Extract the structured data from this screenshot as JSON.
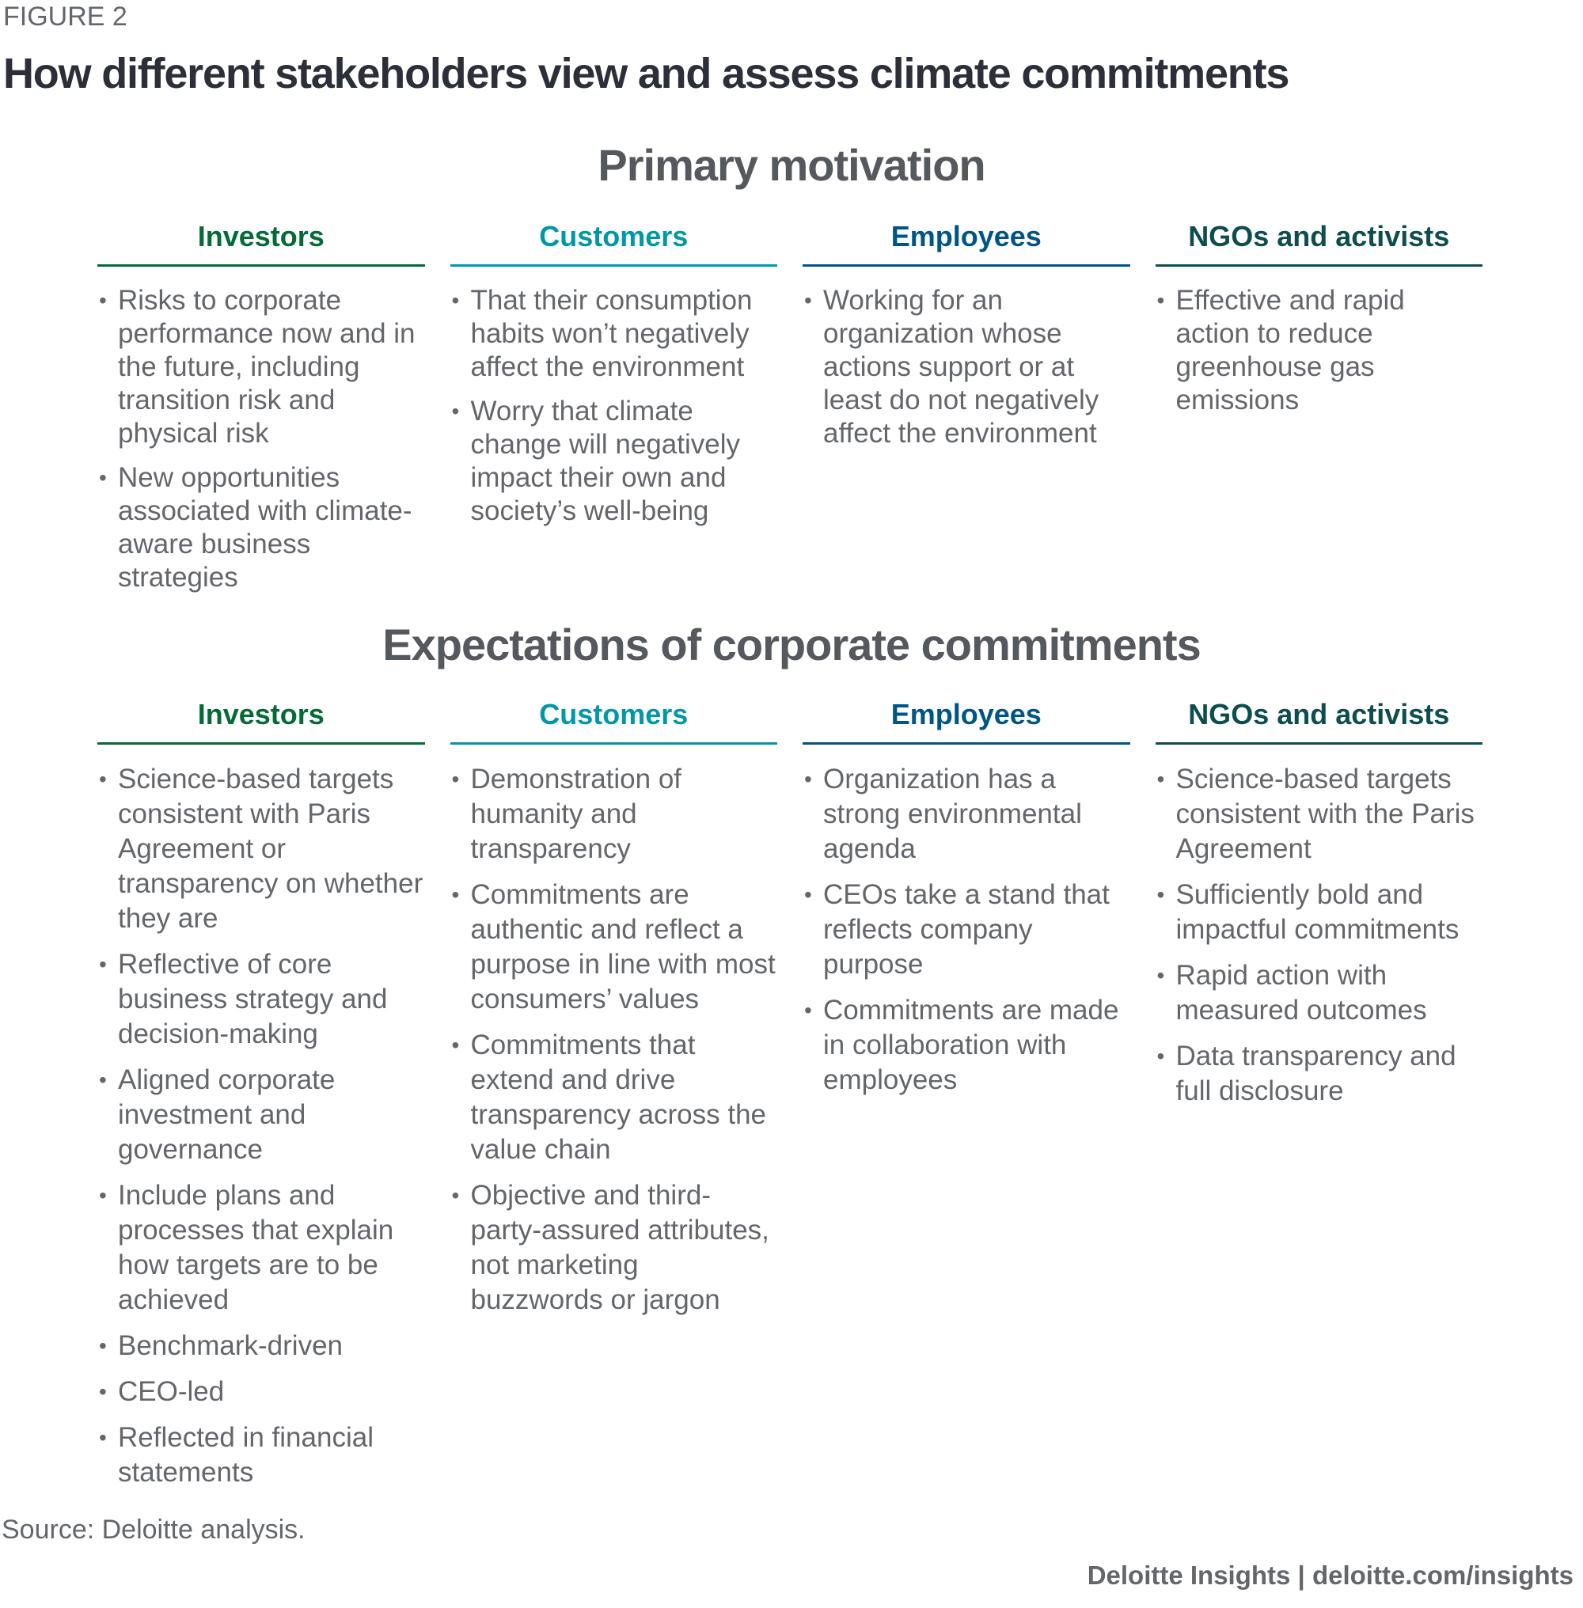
{
  "figure_label": "FIGURE 2",
  "title": "How different stakeholders view and assess climate commitments",
  "colors": {
    "investors": "#046A38",
    "customers": "#0097A9",
    "employees": "#005587",
    "ngos": "#0D4D4D",
    "text": "#63666A",
    "title": "#2c2f3a"
  },
  "sections": [
    {
      "heading": "Primary motivation",
      "columns": [
        {
          "label": "Investors",
          "items": [
            "Risks to corporate performance now and in the future, including transition risk and physical risk",
            "New opportunities associated with climate-aware business strategies"
          ]
        },
        {
          "label": "Customers",
          "items": [
            "That their consumption habits won’t negatively affect the environment",
            "Worry that climate change will negatively impact their own and society’s well-being"
          ]
        },
        {
          "label": "Employees",
          "items": [
            "Working for an organization whose actions support or at least do not negatively affect the environment"
          ]
        },
        {
          "label": "NGOs and activists",
          "items": [
            "Effective and rapid action to reduce greenhouse gas emissions"
          ]
        }
      ]
    },
    {
      "heading": "Expectations of corporate commitments",
      "columns": [
        {
          "label": "Investors",
          "items": [
            "Science-based targets consistent with Paris Agreement or transparency on whether they are",
            "Reflective of core business strategy and decision-making",
            "Aligned corporate investment and governance",
            "Include plans and processes that explain how targets are to be achieved",
            "Benchmark-driven",
            "CEO-led",
            "Reflected in financial statements"
          ]
        },
        {
          "label": "Customers",
          "items": [
            "Demonstration of humanity and transparency",
            "Commitments are authentic and reflect a purpose in line with most consumers’ values",
            "Commitments that extend and drive transparency across the value chain",
            "Objective and third-party-assured attributes, not marketing buzzwords or jargon"
          ]
        },
        {
          "label": "Employees",
          "items": [
            "Organization has a strong environmental agenda",
            "CEOs take a stand that reflects company purpose",
            "Commitments are made in collaboration with employees"
          ]
        },
        {
          "label": "NGOs and activists",
          "items": [
            "Science-based targets consistent with the Paris Agreement",
            "Sufficiently bold and impactful commitments",
            "Rapid action with measured outcomes",
            "Data transparency and full disclosure"
          ]
        }
      ]
    }
  ],
  "source": "Source: Deloitte analysis.",
  "footer": "Deloitte Insights | deloitte.com/insights"
}
